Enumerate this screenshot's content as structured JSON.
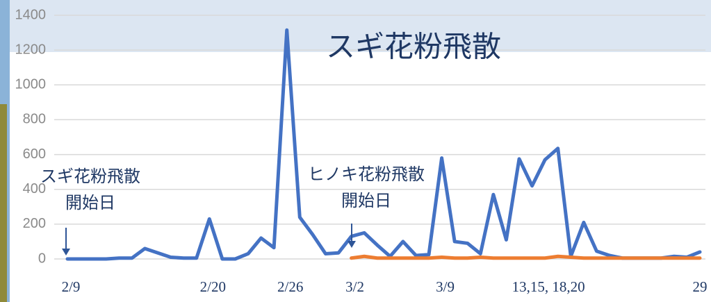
{
  "chart_data": {
    "type": "line",
    "title": "スギ花粉飛散",
    "annotations": [
      {
        "lines": [
          "スギ花粉飛散",
          "開始日"
        ]
      },
      {
        "lines": [
          "ヒノキ花粉飛散",
          "開始日"
        ]
      }
    ],
    "categories": [
      "2/9",
      null,
      null,
      null,
      null,
      null,
      null,
      null,
      null,
      null,
      null,
      "2/20",
      null,
      null,
      null,
      null,
      null,
      "2/26",
      null,
      null,
      null,
      null,
      "3/2",
      null,
      null,
      null,
      null,
      null,
      null,
      "3/9",
      null,
      null,
      null,
      null,
      null,
      null,
      null,
      "13,15, 18,20",
      null,
      null,
      null,
      null,
      null,
      null,
      null,
      null,
      null,
      null,
      null,
      "29"
    ],
    "series": [
      {
        "color": "#4472c4",
        "values": [
          0,
          0,
          0,
          0,
          5,
          5,
          60,
          35,
          10,
          5,
          5,
          230,
          0,
          0,
          30,
          120,
          65,
          1315,
          240,
          140,
          30,
          35,
          130,
          150,
          80,
          15,
          100,
          20,
          25,
          580,
          100,
          90,
          30,
          370,
          110,
          575,
          420,
          570,
          635,
          15,
          210,
          45,
          20,
          5,
          5,
          5,
          5,
          15,
          10,
          40
        ]
      },
      {
        "color": "#ed7d31",
        "values": [
          null,
          null,
          null,
          null,
          null,
          null,
          null,
          null,
          null,
          null,
          null,
          null,
          null,
          null,
          null,
          null,
          null,
          null,
          null,
          null,
          null,
          null,
          5,
          15,
          5,
          5,
          5,
          5,
          5,
          10,
          5,
          5,
          10,
          5,
          5,
          5,
          5,
          5,
          15,
          10,
          5,
          5,
          5,
          5,
          5,
          5,
          5,
          5,
          5,
          5
        ]
      }
    ],
    "ylim": [
      0,
      1400
    ],
    "yticks": [
      0,
      200,
      400,
      600,
      800,
      1000,
      1200,
      1400
    ],
    "grid": true
  }
}
